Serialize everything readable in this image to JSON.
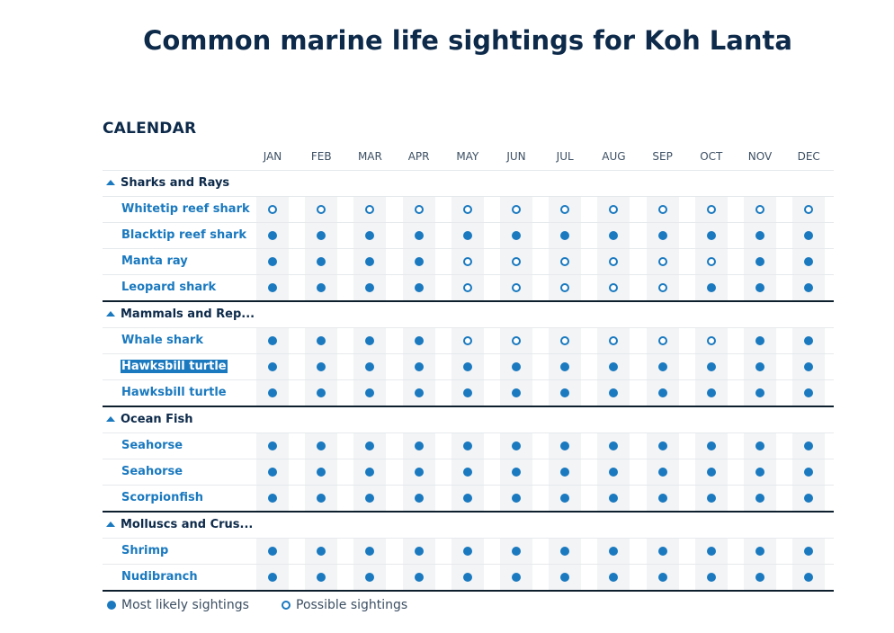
{
  "title": "Common marine life sightings for Koh Lanta",
  "section_label": "CALENDAR",
  "months": [
    "JAN",
    "FEB",
    "MAR",
    "APR",
    "MAY",
    "JUN",
    "JUL",
    "AUG",
    "SEP",
    "OCT",
    "NOV",
    "DEC"
  ],
  "categories": [
    {
      "name": "Sharks and Rays",
      "rows": [
        {
          "name": "Whitetip reef shark",
          "values": [
            "P",
            "P",
            "P",
            "P",
            "P",
            "P",
            "P",
            "P",
            "P",
            "P",
            "P",
            "P"
          ]
        },
        {
          "name": "Blacktip reef shark",
          "values": [
            "L",
            "L",
            "L",
            "L",
            "L",
            "L",
            "L",
            "L",
            "L",
            "L",
            "L",
            "L"
          ]
        },
        {
          "name": "Manta ray",
          "values": [
            "L",
            "L",
            "L",
            "L",
            "P",
            "P",
            "P",
            "P",
            "P",
            "P",
            "L",
            "L"
          ]
        },
        {
          "name": "Leopard shark",
          "values": [
            "L",
            "L",
            "L",
            "L",
            "P",
            "P",
            "P",
            "P",
            "P",
            "L",
            "L",
            "L"
          ]
        }
      ]
    },
    {
      "name": "Mammals and Rep...",
      "rows": [
        {
          "name": "Whale shark",
          "values": [
            "L",
            "L",
            "L",
            "L",
            "P",
            "P",
            "P",
            "P",
            "P",
            "P",
            "L",
            "L"
          ]
        },
        {
          "name": "Hawksbill turtle",
          "selected": true,
          "values": [
            "L",
            "L",
            "L",
            "L",
            "L",
            "L",
            "L",
            "L",
            "L",
            "L",
            "L",
            "L"
          ]
        },
        {
          "name": "Hawksbill turtle",
          "values": [
            "L",
            "L",
            "L",
            "L",
            "L",
            "L",
            "L",
            "L",
            "L",
            "L",
            "L",
            "L"
          ]
        }
      ]
    },
    {
      "name": "Ocean Fish",
      "rows": [
        {
          "name": "Seahorse",
          "values": [
            "L",
            "L",
            "L",
            "L",
            "L",
            "L",
            "L",
            "L",
            "L",
            "L",
            "L",
            "L"
          ]
        },
        {
          "name": "Seahorse",
          "values": [
            "L",
            "L",
            "L",
            "L",
            "L",
            "L",
            "L",
            "L",
            "L",
            "L",
            "L",
            "L"
          ]
        },
        {
          "name": "Scorpionfish",
          "values": [
            "L",
            "L",
            "L",
            "L",
            "L",
            "L",
            "L",
            "L",
            "L",
            "L",
            "L",
            "L"
          ]
        }
      ]
    },
    {
      "name": "Molluscs and Crus...",
      "rows": [
        {
          "name": "Shrimp",
          "values": [
            "L",
            "L",
            "L",
            "L",
            "L",
            "L",
            "L",
            "L",
            "L",
            "L",
            "L",
            "L"
          ]
        },
        {
          "name": "Nudibranch",
          "values": [
            "L",
            "L",
            "L",
            "L",
            "L",
            "L",
            "L",
            "L",
            "L",
            "L",
            "L",
            "L"
          ]
        }
      ]
    }
  ],
  "legend": {
    "likely": "Most likely sightings",
    "possible": "Possible sightings"
  },
  "colors": {
    "accent": "#1a79bf",
    "title": "#0d2a4a",
    "cell_bg": "#f2f4f6"
  }
}
